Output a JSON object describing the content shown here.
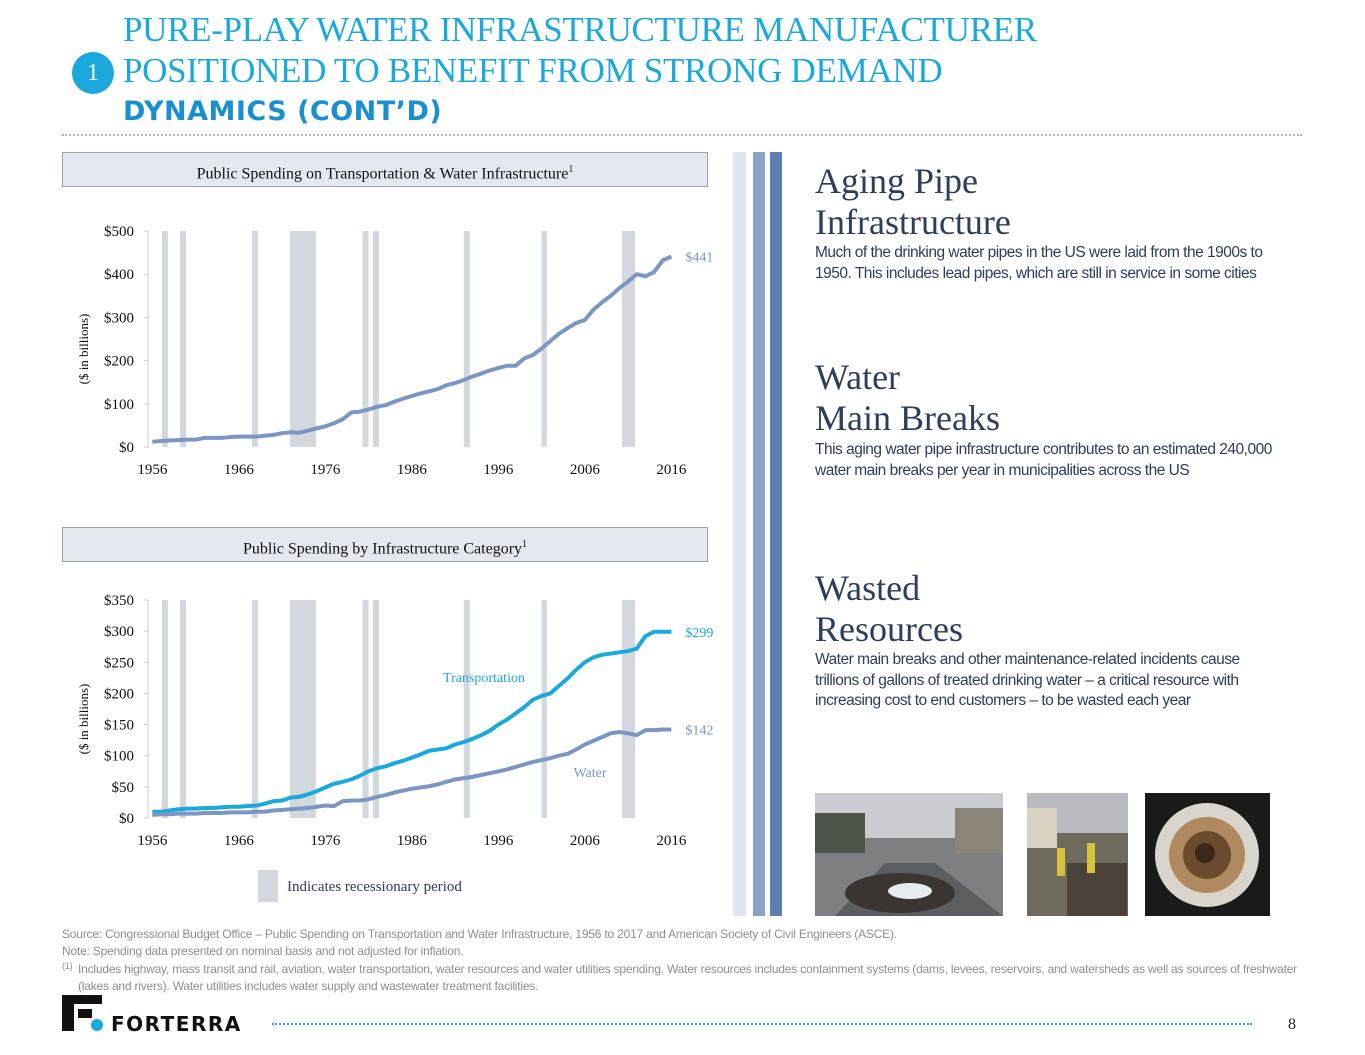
{
  "header": {
    "badge": "1",
    "title_lines": [
      "PURE-PLAY WATER INFRASTRUCTURE MANUFACTURER",
      "POSITIONED TO BENEFIT FROM STRONG DEMAND",
      "DYNAMICS (CONT’D)"
    ]
  },
  "chart_data": [
    {
      "type": "line",
      "title": "Public Spending on Transportation & Water Infrastructure",
      "title_note": "1",
      "y_label": "($ in billions)",
      "x": [
        1956,
        1957,
        1958,
        1959,
        1960,
        1961,
        1962,
        1963,
        1964,
        1965,
        1966,
        1967,
        1968,
        1969,
        1970,
        1971,
        1972,
        1973,
        1974,
        1975,
        1976,
        1977,
        1978,
        1979,
        1980,
        1981,
        1982,
        1983,
        1984,
        1985,
        1986,
        1987,
        1988,
        1989,
        1990,
        1991,
        1992,
        1993,
        1994,
        1995,
        1996,
        1997,
        1998,
        1999,
        2000,
        2001,
        2002,
        2003,
        2004,
        2005,
        2006,
        2007,
        2008,
        2009,
        2010,
        2011,
        2012,
        2013,
        2014,
        2015,
        2016
      ],
      "series": [
        {
          "color": "#7b96c2",
          "end_label": "$441",
          "values": [
            12,
            14,
            15,
            16,
            17,
            17,
            21,
            21,
            21,
            23,
            24,
            24,
            24,
            26,
            28,
            32,
            34,
            33,
            38,
            43,
            48,
            55,
            64,
            80,
            82,
            87,
            93,
            97,
            105,
            112,
            118,
            124,
            129,
            134,
            143,
            148,
            155,
            163,
            170,
            177,
            183,
            188,
            188,
            205,
            213,
            228,
            245,
            262,
            275,
            287,
            294,
            318,
            335,
            350,
            368,
            383,
            400,
            395,
            405,
            432,
            441
          ]
        }
      ],
      "xlim": [
        1955.5,
        2017
      ],
      "xticks": [
        1956,
        1966,
        1976,
        1986,
        1996,
        2006,
        2016
      ],
      "ylim": [
        0,
        500
      ],
      "yticks": [
        {
          "value": 0,
          "label": "$0"
        },
        {
          "value": 100,
          "label": "$100"
        },
        {
          "value": 200,
          "label": "$200"
        },
        {
          "value": 300,
          "label": "$300"
        },
        {
          "value": 400,
          "label": "$400"
        },
        {
          "value": 500,
          "label": "$500"
        }
      ],
      "recession_color": "#d3d8de",
      "recessions": [
        [
          1957.1,
          1957.8
        ],
        [
          1959.2,
          1959.9
        ],
        [
          1967.5,
          1968.2
        ],
        [
          1971.9,
          1974.9
        ],
        [
          1980.3,
          1981.0
        ],
        [
          1981.5,
          1982.2
        ],
        [
          1992.0,
          1992.7
        ],
        [
          2001.0,
          2001.6
        ],
        [
          2010.3,
          2011.8
        ]
      ]
    },
    {
      "type": "line",
      "title": "Public Spending by Infrastructure Category",
      "title_note": "1",
      "y_label": "($ in billions)",
      "x": [
        1956,
        1957,
        1958,
        1959,
        1960,
        1961,
        1962,
        1963,
        1964,
        1965,
        1966,
        1967,
        1968,
        1969,
        1970,
        1971,
        1972,
        1973,
        1974,
        1975,
        1976,
        1977,
        1978,
        1979,
        1980,
        1981,
        1982,
        1983,
        1984,
        1985,
        1986,
        1987,
        1988,
        1989,
        1990,
        1991,
        1992,
        1993,
        1994,
        1995,
        1996,
        1997,
        1998,
        1999,
        2000,
        2001,
        2002,
        2003,
        2004,
        2005,
        2006,
        2007,
        2008,
        2009,
        2010,
        2011,
        2012,
        2013,
        2014,
        2015,
        2016
      ],
      "series": [
        {
          "name": "Transportation",
          "color": "#1ba9dd",
          "end_label": "$299",
          "values": [
            10,
            10,
            12,
            14,
            15,
            15,
            16,
            16,
            17,
            18,
            18,
            19,
            20,
            23,
            27,
            28,
            33,
            34,
            38,
            43,
            49,
            55,
            58,
            62,
            68,
            75,
            80,
            83,
            88,
            92,
            97,
            102,
            108,
            110,
            112,
            118,
            122,
            127,
            133,
            140,
            150,
            158,
            168,
            178,
            190,
            196,
            200,
            212,
            224,
            238,
            250,
            258,
            262,
            264,
            266,
            268,
            272,
            292,
            299,
            299,
            299
          ]
        },
        {
          "name": "Water",
          "color": "#7b96c2",
          "end_label": "$142",
          "values": [
            5,
            6,
            6,
            7,
            7,
            7,
            8,
            8,
            8,
            9,
            9,
            9,
            10,
            10,
            12,
            13,
            14,
            15,
            16,
            18,
            20,
            19,
            27,
            28,
            28,
            30,
            34,
            37,
            41,
            44,
            47,
            49,
            51,
            54,
            58,
            62,
            64,
            66,
            69,
            72,
            75,
            78,
            82,
            86,
            90,
            93,
            96,
            100,
            103,
            110,
            118,
            124,
            130,
            136,
            138,
            136,
            133,
            141,
            141,
            142,
            142
          ]
        }
      ],
      "xlim": [
        1955.5,
        2017
      ],
      "xticks": [
        1956,
        1966,
        1976,
        1986,
        1996,
        2006,
        2016
      ],
      "ylim": [
        0,
        350
      ],
      "yticks": [
        {
          "value": 0,
          "label": "$0"
        },
        {
          "value": 50,
          "label": "$50"
        },
        {
          "value": 100,
          "label": "$100"
        },
        {
          "value": 150,
          "label": "$150"
        },
        {
          "value": 200,
          "label": "$200"
        },
        {
          "value": 250,
          "label": "$250"
        },
        {
          "value": 300,
          "label": "$300"
        },
        {
          "value": 350,
          "label": "$350"
        }
      ],
      "recession_color": "#d3d8de",
      "recession_label": "Indicates recessionary period",
      "recessions": [
        [
          1957.1,
          1957.8
        ],
        [
          1959.2,
          1959.9
        ],
        [
          1967.5,
          1968.2
        ],
        [
          1971.9,
          1974.9
        ],
        [
          1980.3,
          1981.0
        ],
        [
          1981.5,
          1982.2
        ],
        [
          1992.0,
          1992.7
        ],
        [
          2001.0,
          2001.6
        ],
        [
          2010.3,
          2011.8
        ]
      ]
    }
  ],
  "sections": [
    {
      "heading": [
        "Aging Pipe",
        "Infrastructure"
      ],
      "text": "Much of the drinking water pipes in the US were laid from the 1900s to 1950. This includes lead pipes, which are still in service in some cities"
    },
    {
      "heading": [
        "Water",
        "Main Breaks"
      ],
      "text": "This aging water pipe infrastructure contributes to an estimated 240,000 water main breaks per year in municipalities across the US"
    },
    {
      "heading": [
        "Wasted",
        "Resources"
      ],
      "text": "Water main breaks and other maintenance-related incidents cause trillions of gallons of treated drinking water – a critical resource with increasing cost to end customers – to be wasted each year"
    }
  ],
  "notes": {
    "source": "Source: Congressional Budget Office – Public Spending on Transportation and Water Infrastructure, 1956 to 2017 and American Society of Civil Engineers (ASCE).",
    "note": "Note: Spending data presented on nominal basis and not adjusted for inflation.",
    "footnote_marker": "(1)",
    "footnote": "Includes highway, mass transit and rail, aviation, water transportation, water resources and water utilities spending. Water resources includes containment systems (dams, levees, reservoirs, and watersheds as well as sources of freshwater (lakes and rivers). Water utilities includes water supply and wastewater treatment facilities."
  },
  "footer": {
    "logo": "FORTERRA",
    "page": "8"
  }
}
